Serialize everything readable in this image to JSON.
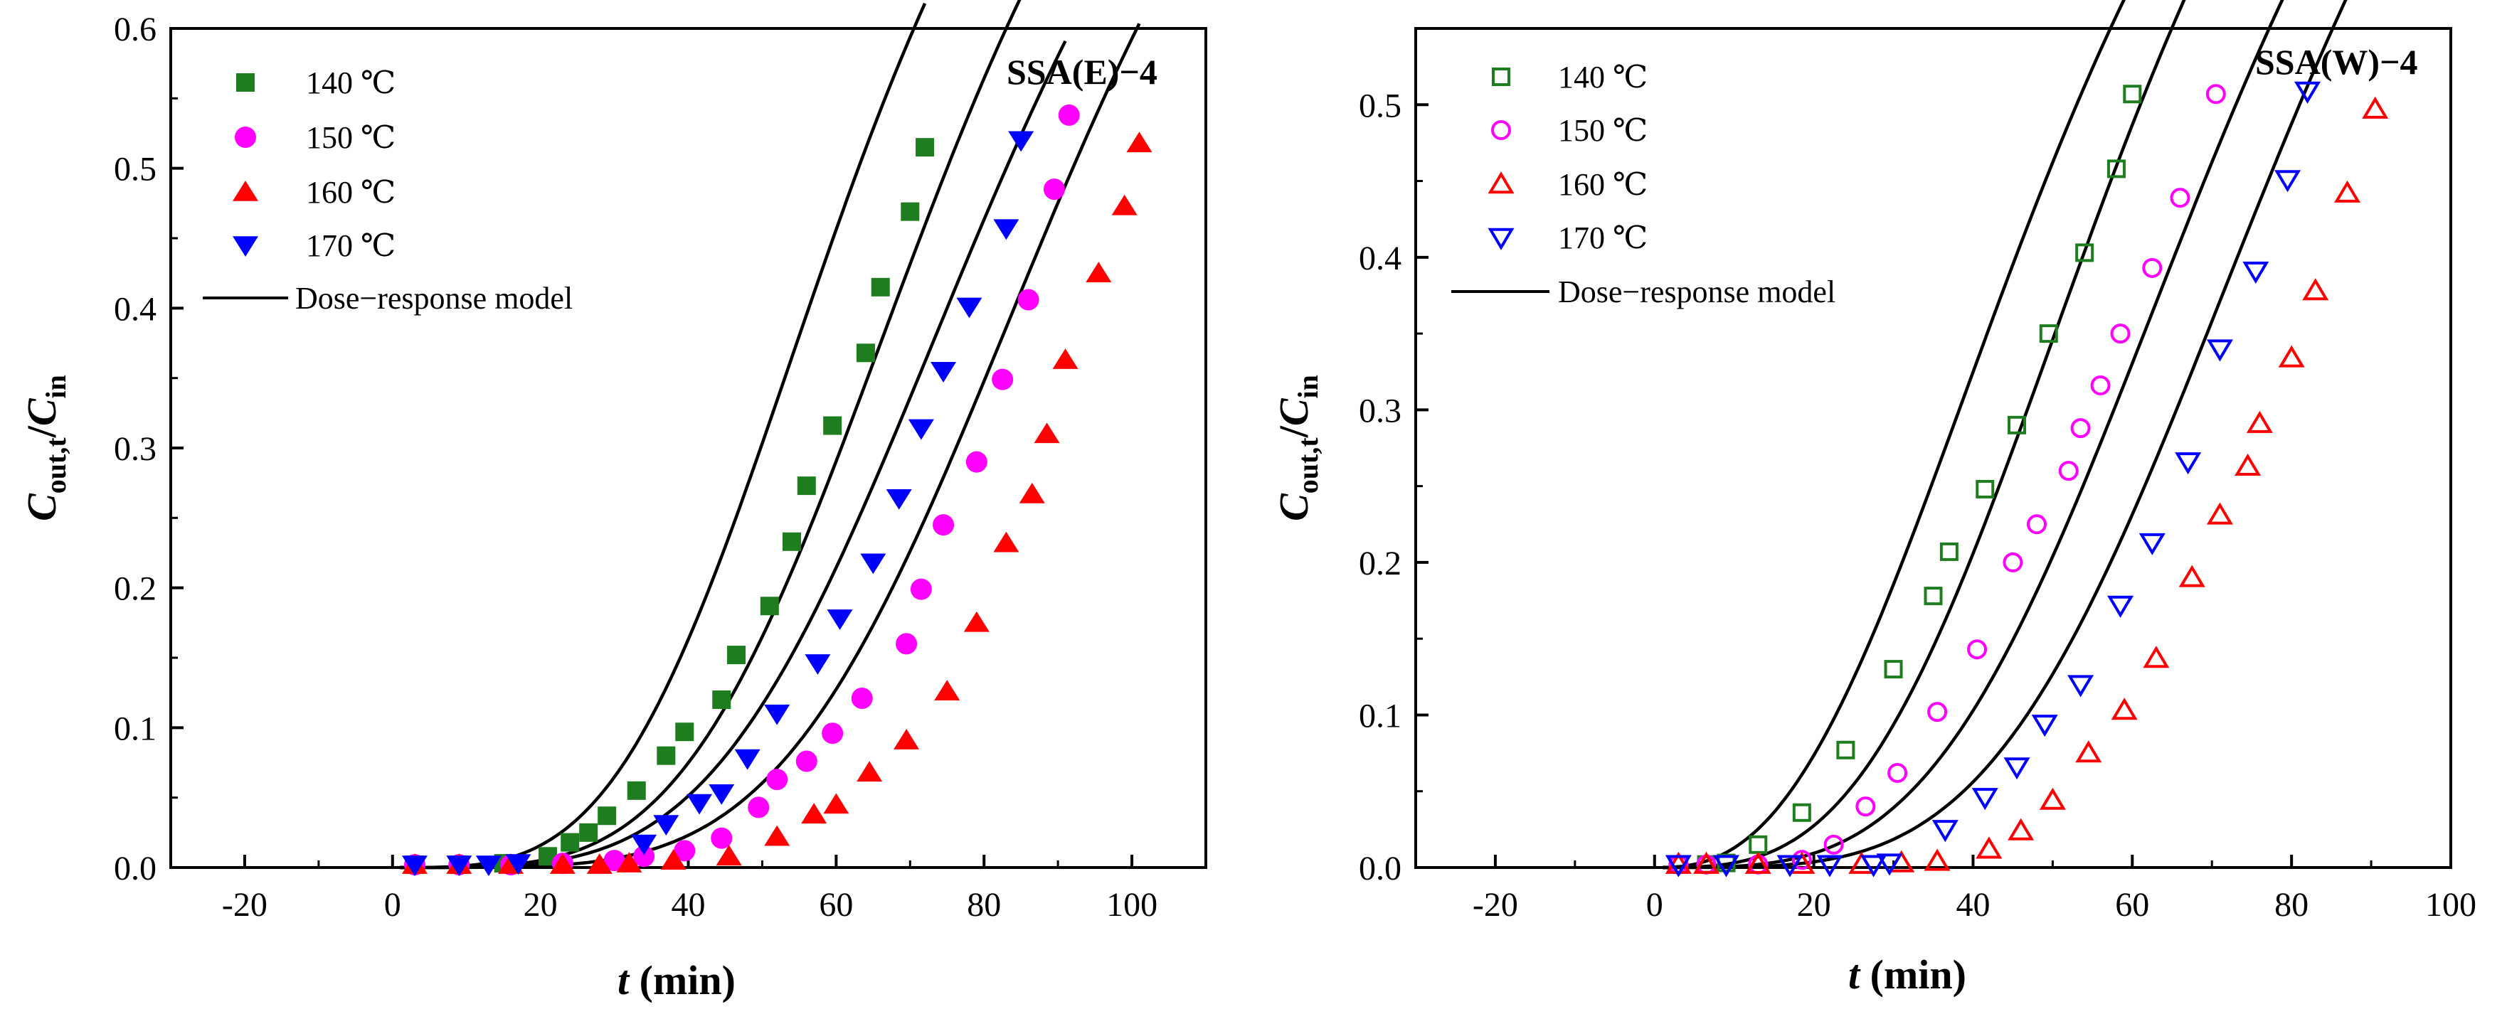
{
  "chart_data": [
    {
      "type": "scatter",
      "title": "SSA(E)−4",
      "xlabel": {
        "var": "t",
        "unit": "(min)"
      },
      "ylabel": {
        "main": "C",
        "sub1": "out,t",
        "slash": "/",
        "main2": "C",
        "sub2": "in"
      },
      "xlim": [
        -30,
        110
      ],
      "ylim": [
        0,
        0.6
      ],
      "xticks": [
        -20,
        0,
        20,
        40,
        60,
        80,
        100
      ],
      "yticks": [
        0.0,
        0.1,
        0.2,
        0.3,
        0.4,
        0.5,
        0.6
      ],
      "xtick_labels": [
        "-20",
        "0",
        "20",
        "40",
        "60",
        "80",
        "100"
      ],
      "ytick_labels": [
        "0.0",
        "0.1",
        "0.2",
        "0.3",
        "0.4",
        "0.5",
        "0.6"
      ],
      "model_label": "Dose−response model",
      "series": [
        {
          "name": "140 ℃",
          "marker": "square-filled",
          "color": "#1e7d1e",
          "x": [
            3,
            9,
            15,
            21,
            24,
            26.5,
            29,
            33,
            37,
            39.5,
            44.5,
            46.5,
            51,
            54,
            56,
            59.5,
            64,
            66,
            70,
            72
          ],
          "y": [
            0.002,
            0.002,
            0.003,
            0.008,
            0.018,
            0.025,
            0.037,
            0.055,
            0.08,
            0.097,
            0.12,
            0.152,
            0.187,
            0.233,
            0.273,
            0.316,
            0.368,
            0.415,
            0.469,
            0.515
          ],
          "model": {
            "x0": 63.0,
            "p": 3.6,
            "a1": 1.0,
            "x_end": 72.0
          }
        },
        {
          "name": "150 ℃",
          "marker": "circle-filled",
          "color": "#ff00ff",
          "x": [
            3,
            9,
            16,
            23,
            30,
            34,
            39.5,
            44.5,
            49.5,
            52,
            56,
            59.5,
            63.5,
            69.5,
            71.5,
            74.5,
            79,
            82.5,
            86,
            89.5,
            91.5
          ],
          "y": [
            0.002,
            0.002,
            0.002,
            0.003,
            0.005,
            0.008,
            0.012,
            0.021,
            0.043,
            0.063,
            0.076,
            0.096,
            0.121,
            0.16,
            0.199,
            0.245,
            0.29,
            0.349,
            0.406,
            0.485,
            0.538
          ],
          "model": {
            "x0": 83.0,
            "p": 4.0,
            "a1": 1.0,
            "x_end": 91.0
          }
        },
        {
          "name": "160 ℃",
          "marker": "triangle-up-filled",
          "color": "#ff0000",
          "x": [
            3,
            9,
            16,
            23,
            28,
            32,
            38,
            45.5,
            52,
            57,
            60,
            64.5,
            69.5,
            75,
            79,
            83,
            86.5,
            88.5,
            91,
            95.5,
            99,
            101
          ],
          "y": [
            0.002,
            0.002,
            0.002,
            0.002,
            0.002,
            0.003,
            0.005,
            0.008,
            0.022,
            0.038,
            0.045,
            0.068,
            0.091,
            0.126,
            0.175,
            0.232,
            0.267,
            0.31,
            0.363,
            0.425,
            0.473,
            0.518
          ],
          "model": {
            "x0": 92.0,
            "p": 4.5,
            "a1": 1.0,
            "x_end": 101.0
          }
        },
        {
          "name": "170 ℃",
          "marker": "triangle-down-filled",
          "color": "#0000ff",
          "x": [
            3,
            9,
            13,
            17,
            34,
            37,
            41.5,
            44.5,
            48,
            52,
            57.5,
            60.5,
            65,
            68.5,
            71.5,
            74.5,
            78,
            83,
            85
          ],
          "y": [
            0.002,
            0.002,
            0.002,
            0.003,
            0.017,
            0.031,
            0.046,
            0.053,
            0.078,
            0.11,
            0.146,
            0.178,
            0.218,
            0.264,
            0.314,
            0.355,
            0.401,
            0.457,
            0.52
          ],
          "model": {
            "x0": 75.0,
            "p": 4.0,
            "a1": 1.0,
            "x_end": 87.0
          }
        }
      ]
    },
    {
      "type": "scatter",
      "title": "SSA(W)−4",
      "xlabel": {
        "var": "t",
        "unit": "(min)"
      },
      "ylabel": {
        "main": "C",
        "sub1": "out,t",
        "slash": "/",
        "main2": "C",
        "sub2": "in"
      },
      "xlim": [
        -30,
        100
      ],
      "ylim": [
        0,
        0.55
      ],
      "xticks": [
        -20,
        0,
        20,
        40,
        60,
        80,
        100
      ],
      "yticks": [
        0.0,
        0.1,
        0.2,
        0.3,
        0.4,
        0.5
      ],
      "xtick_labels": [
        "-20",
        "0",
        "20",
        "40",
        "60",
        "80",
        "100"
      ],
      "ytick_labels": [
        "0.0",
        "0.1",
        "0.2",
        "0.3",
        "0.4",
        "0.5"
      ],
      "model_label": "Dose−response model",
      "series": [
        {
          "name": "140 ℃",
          "marker": "square-open",
          "color": "#1e7d1e",
          "x": [
            3,
            6.5,
            9,
            13,
            18.5,
            24,
            30,
            35,
            37,
            41.5,
            45.5,
            49.5,
            54,
            58,
            60
          ],
          "y": [
            0.002,
            0.002,
            0.003,
            0.015,
            0.036,
            0.077,
            0.13,
            0.178,
            0.207,
            0.248,
            0.29,
            0.35,
            0.403,
            0.458,
            0.507
          ],
          "model": {
            "x0": 53.0,
            "p": 2.6,
            "a1": 1.0,
            "x_end": 59.0
          }
        },
        {
          "name": "150 ℃",
          "marker": "circle-open",
          "color": "#ff00ff",
          "x": [
            3,
            6.5,
            13,
            18.5,
            22.5,
            26.5,
            30.5,
            35.5,
            40.5,
            45,
            48,
            52,
            53.5,
            56,
            58.5,
            62.5,
            66,
            70.5
          ],
          "y": [
            0.002,
            0.002,
            0.002,
            0.005,
            0.015,
            0.04,
            0.062,
            0.102,
            0.143,
            0.2,
            0.225,
            0.26,
            0.288,
            0.316,
            0.35,
            0.393,
            0.439,
            0.507
          ],
          "model": {
            "x0": 61.0,
            "p": 3.2,
            "a1": 1.0,
            "x_end": 70.0
          }
        },
        {
          "name": "160 ℃",
          "marker": "triangle-up-open",
          "color": "#ff0000",
          "x": [
            3,
            6.5,
            13,
            18.5,
            26,
            31,
            35.5,
            42,
            46,
            50,
            54.5,
            59,
            63,
            67.5,
            71,
            74.5,
            76,
            80,
            83,
            87,
            90.5
          ],
          "y": [
            0.002,
            0.002,
            0.002,
            0.002,
            0.002,
            0.003,
            0.004,
            0.012,
            0.024,
            0.044,
            0.075,
            0.103,
            0.137,
            0.19,
            0.231,
            0.263,
            0.291,
            0.334,
            0.378,
            0.442,
            0.497
          ],
          "model": {
            "x0": 81.0,
            "p": 4.0,
            "a1": 1.0,
            "x_end": 90.0
          }
        },
        {
          "name": "170 ℃",
          "marker": "triangle-down-open",
          "color": "#0000ff",
          "x": [
            3,
            9,
            17,
            22,
            27.5,
            29.5,
            36.5,
            41.5,
            45.5,
            49,
            53.5,
            58.5,
            62.5,
            67,
            71,
            75.5,
            79.5,
            82
          ],
          "y": [
            0.002,
            0.002,
            0.002,
            0.002,
            0.002,
            0.003,
            0.025,
            0.046,
            0.066,
            0.094,
            0.12,
            0.172,
            0.213,
            0.266,
            0.34,
            0.391,
            0.451,
            0.509
          ],
          "model": {
            "x0": 73.0,
            "p": 3.6,
            "a1": 1.0,
            "x_end": 82.0
          }
        }
      ]
    }
  ]
}
